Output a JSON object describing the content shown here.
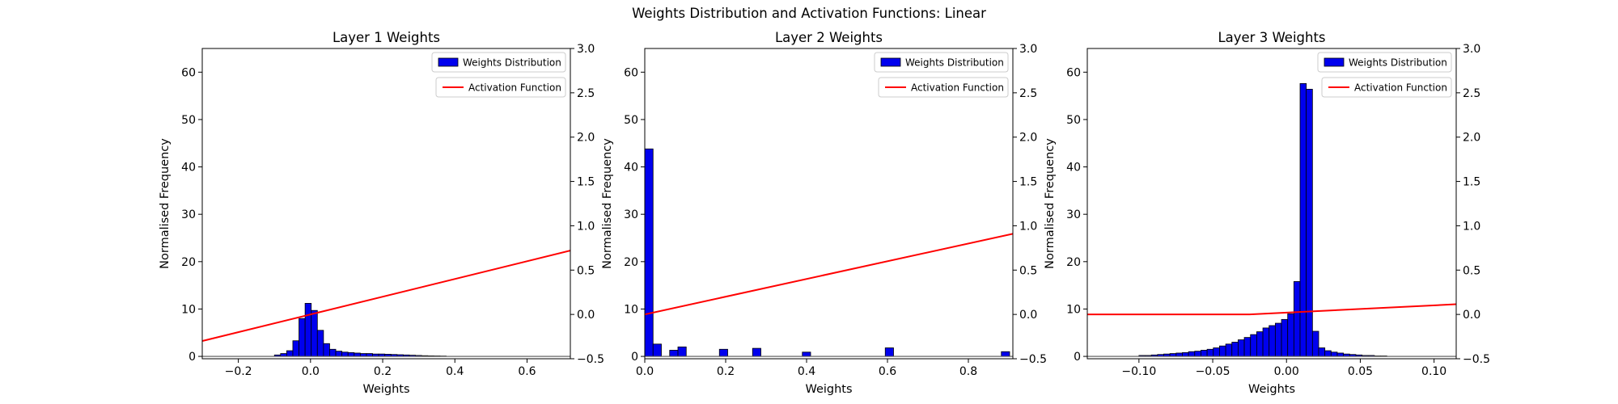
{
  "figure": {
    "title": "Weights Distribution and Activation Functions: Linear",
    "colors": {
      "bar_fill": "#0000ee",
      "bar_edge": "#000000",
      "activation_line": "#ff0000"
    }
  },
  "chart_data": [
    {
      "type": "bar",
      "title": "Layer 1 Weights",
      "xlabel": "Weights",
      "ylabel": "Normalised Frequency",
      "xlim": [
        -0.3,
        0.72
      ],
      "ylim": [
        -0.5,
        65
      ],
      "xticks": [
        -0.2,
        0.0,
        0.2,
        0.4,
        0.6
      ],
      "xtick_labels": [
        "−0.2",
        "0.0",
        "0.2",
        "0.4",
        "0.6"
      ],
      "yticks": [
        0,
        10,
        20,
        30,
        40,
        50,
        60
      ],
      "y2lim": [
        -0.5,
        3.0
      ],
      "y2ticks": [
        -0.5,
        0.0,
        0.5,
        1.0,
        1.5,
        2.0,
        2.5,
        3.0
      ],
      "y2tick_labels": [
        "−0.5",
        "0.0",
        "0.5",
        "1.0",
        "1.5",
        "2.0",
        "2.5",
        "3.0"
      ],
      "legend": [
        "Weights Distribution",
        "Activation Function"
      ],
      "legend_position": "top-right",
      "histogram": {
        "bin_width": 0.017,
        "bin_starts": [
          -0.1,
          -0.083,
          -0.066,
          -0.049,
          -0.032,
          -0.015,
          0.002,
          0.019,
          0.036,
          0.053,
          0.07,
          0.087,
          0.104,
          0.121,
          0.138,
          0.155,
          0.172,
          0.189,
          0.206,
          0.223,
          0.24,
          0.257,
          0.274,
          0.291,
          0.308,
          0.325,
          0.342,
          0.359
        ],
        "values": [
          0.3,
          0.6,
          1.2,
          3.3,
          8.0,
          11.2,
          9.7,
          5.5,
          2.7,
          1.5,
          1.1,
          0.9,
          0.8,
          0.7,
          0.6,
          0.6,
          0.5,
          0.5,
          0.45,
          0.4,
          0.35,
          0.3,
          0.25,
          0.2,
          0.15,
          0.12,
          0.1,
          0.08
        ]
      },
      "activation": {
        "x": [
          -0.3,
          0.72
        ],
        "y": [
          -0.3,
          0.72
        ]
      }
    },
    {
      "type": "bar",
      "title": "Layer 2 Weights",
      "xlabel": "Weights",
      "ylabel": "Normalised Frequency",
      "xlim": [
        0.0,
        0.91
      ],
      "ylim": [
        -0.5,
        65
      ],
      "xticks": [
        0.0,
        0.2,
        0.4,
        0.6,
        0.8
      ],
      "xtick_labels": [
        "0.0",
        "0.2",
        "0.4",
        "0.6",
        "0.8"
      ],
      "yticks": [
        0,
        10,
        20,
        30,
        40,
        50,
        60
      ],
      "y2lim": [
        -0.5,
        3.0
      ],
      "y2ticks": [
        -0.5,
        0.0,
        0.5,
        1.0,
        1.5,
        2.0,
        2.5,
        3.0
      ],
      "y2tick_labels": [
        "−0.5",
        "0.0",
        "0.5",
        "1.0",
        "1.5",
        "2.0",
        "2.5",
        "3.0"
      ],
      "legend": [
        "Weights Distribution",
        "Activation Function"
      ],
      "legend_position": "top-right",
      "histogram": {
        "bin_width": 0.0205,
        "bin_starts": [
          0.0,
          0.0205,
          0.041,
          0.0615,
          0.082,
          0.1025,
          0.123,
          0.1435,
          0.164,
          0.1845,
          0.205,
          0.2255,
          0.246,
          0.2665,
          0.287,
          0.3075,
          0.328,
          0.3485,
          0.369,
          0.3895,
          0.41,
          0.4305,
          0.451,
          0.4715,
          0.492,
          0.5125,
          0.533,
          0.5535,
          0.574,
          0.5945,
          0.615,
          0.6355,
          0.656,
          0.6765,
          0.697,
          0.7175,
          0.738,
          0.7585,
          0.779,
          0.7995,
          0.82,
          0.8405,
          0.861,
          0.8815
        ],
        "values": [
          43.8,
          2.6,
          0,
          1.3,
          2.0,
          0,
          0,
          0,
          0,
          1.5,
          0,
          0,
          0,
          1.7,
          0,
          0,
          0,
          0,
          0,
          0.9,
          0,
          0,
          0,
          0,
          0,
          0,
          0,
          0,
          0,
          1.8,
          0,
          0,
          0,
          0,
          0,
          0,
          0,
          0,
          0,
          0,
          0,
          0,
          0,
          1.0
        ]
      },
      "activation": {
        "x": [
          0.0,
          0.91
        ],
        "y": [
          0.0,
          0.91
        ]
      }
    },
    {
      "type": "bar",
      "title": "Layer 3 Weights",
      "xlabel": "Weights",
      "ylabel": "Normalised Frequency",
      "xlim": [
        -0.135,
        0.115
      ],
      "ylim": [
        -0.5,
        65
      ],
      "xticks": [
        -0.1,
        -0.05,
        0.0,
        0.05,
        0.1
      ],
      "xtick_labels": [
        "−0.10",
        "−0.05",
        "0.00",
        "0.05",
        "0.10"
      ],
      "yticks": [
        0,
        10,
        20,
        30,
        40,
        50,
        60
      ],
      "y2lim": [
        -0.5,
        3.0
      ],
      "y2ticks": [
        -0.5,
        0.0,
        0.5,
        1.0,
        1.5,
        2.0,
        2.5,
        3.0
      ],
      "y2tick_labels": [
        "−0.5",
        "0.0",
        "0.5",
        "1.0",
        "1.5",
        "2.0",
        "2.5",
        "3.0"
      ],
      "legend": [
        "Weights Distribution",
        "Activation Function"
      ],
      "legend_position": "top-right",
      "histogram": {
        "bin_width": 0.0042,
        "bin_starts": [
          -0.1,
          -0.0958,
          -0.0916,
          -0.0874,
          -0.0832,
          -0.079,
          -0.0748,
          -0.0706,
          -0.0664,
          -0.0622,
          -0.058,
          -0.0538,
          -0.0496,
          -0.0454,
          -0.0412,
          -0.037,
          -0.0328,
          -0.0286,
          -0.0244,
          -0.0202,
          -0.016,
          -0.0118,
          -0.0076,
          -0.0034,
          0.0008,
          0.005,
          0.0092,
          0.0134,
          0.0176,
          0.0218,
          0.026,
          0.0302,
          0.0344,
          0.0386,
          0.0428,
          0.047,
          0.0512,
          0.0554,
          0.0596,
          0.0638
        ],
        "values": [
          0.2,
          0.2,
          0.3,
          0.4,
          0.5,
          0.6,
          0.7,
          0.8,
          1.0,
          1.1,
          1.3,
          1.5,
          1.8,
          2.2,
          2.6,
          3.0,
          3.5,
          4.0,
          4.6,
          5.2,
          6.0,
          6.5,
          7.0,
          7.8,
          9.0,
          15.8,
          57.6,
          56.4,
          5.3,
          1.8,
          1.2,
          0.9,
          0.7,
          0.5,
          0.4,
          0.3,
          0.2,
          0.2,
          0.1,
          0.1
        ]
      },
      "activation": {
        "x": [
          -0.135,
          -0.025,
          0.115
        ],
        "y": [
          0.0,
          0.0,
          0.115
        ]
      }
    }
  ]
}
